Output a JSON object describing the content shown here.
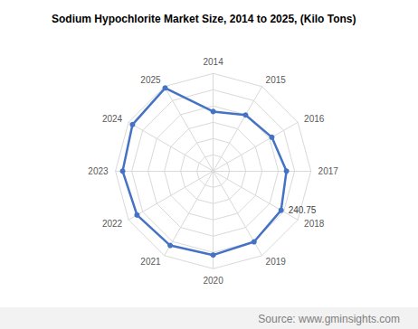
{
  "chart_data": {
    "type": "radar",
    "title": "Sodium Hypochlorite Market Size, 2014 to 2025, (Kilo Tons)",
    "source": "Source: www.gminsights.com",
    "categories": [
      "2014",
      "2015",
      "2016",
      "2017",
      "2018",
      "2019",
      "2020",
      "2021",
      "2022",
      "2023",
      "2024",
      "2025"
    ],
    "values": [
      183,
      199,
      208,
      225,
      240.75,
      251,
      258,
      264,
      270,
      278,
      286,
      295
    ],
    "color": "#4472c4",
    "marker": "circle",
    "ylim": [
      0,
      300
    ],
    "yticks": [
      0,
      50,
      100,
      150,
      200,
      250,
      300
    ],
    "grid": true,
    "tick_labels": false,
    "annotations": [
      {
        "category": "2018",
        "value": 240.75
      }
    ]
  }
}
